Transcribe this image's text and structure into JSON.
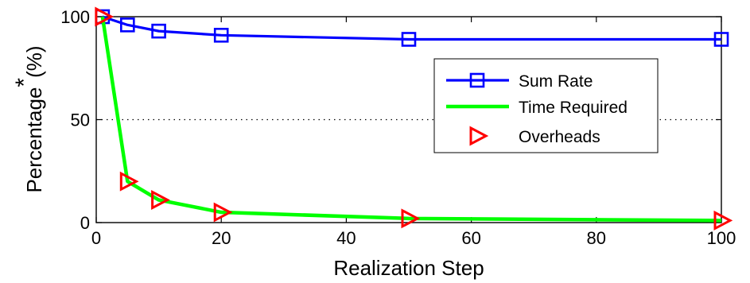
{
  "chart_data": {
    "type": "line",
    "xlabel": "Realization Step",
    "ylabel_main": "Percentage",
    "ylabel_superscript": "*",
    "ylabel_suffix": "(%)",
    "xlim": [
      0,
      100
    ],
    "ylim": [
      0,
      100
    ],
    "xticks": [
      "0",
      "20",
      "40",
      "60",
      "80",
      "100"
    ],
    "yticks": [
      "0",
      "50",
      "100"
    ],
    "grid": "dotted horizontal line at y = 50",
    "legend_position": "center-right",
    "series": [
      {
        "name": "Sum Rate",
        "color": "#0000ff",
        "marker": "square",
        "x": [
          1,
          5,
          10,
          20,
          50,
          100
        ],
        "y": [
          100,
          96,
          93,
          91,
          89,
          89
        ]
      },
      {
        "name": "Time Required",
        "color": "#00ff00",
        "marker": "none",
        "x": [
          1,
          5,
          10,
          20,
          50,
          100
        ],
        "y": [
          100,
          20,
          11,
          5,
          2,
          1
        ]
      },
      {
        "name": "Overheads",
        "color": "#ff0000",
        "marker": "triangle-right",
        "x": [
          1,
          5,
          10,
          20,
          50,
          100
        ],
        "y": [
          100,
          20,
          11,
          5,
          2,
          1
        ]
      }
    ]
  }
}
